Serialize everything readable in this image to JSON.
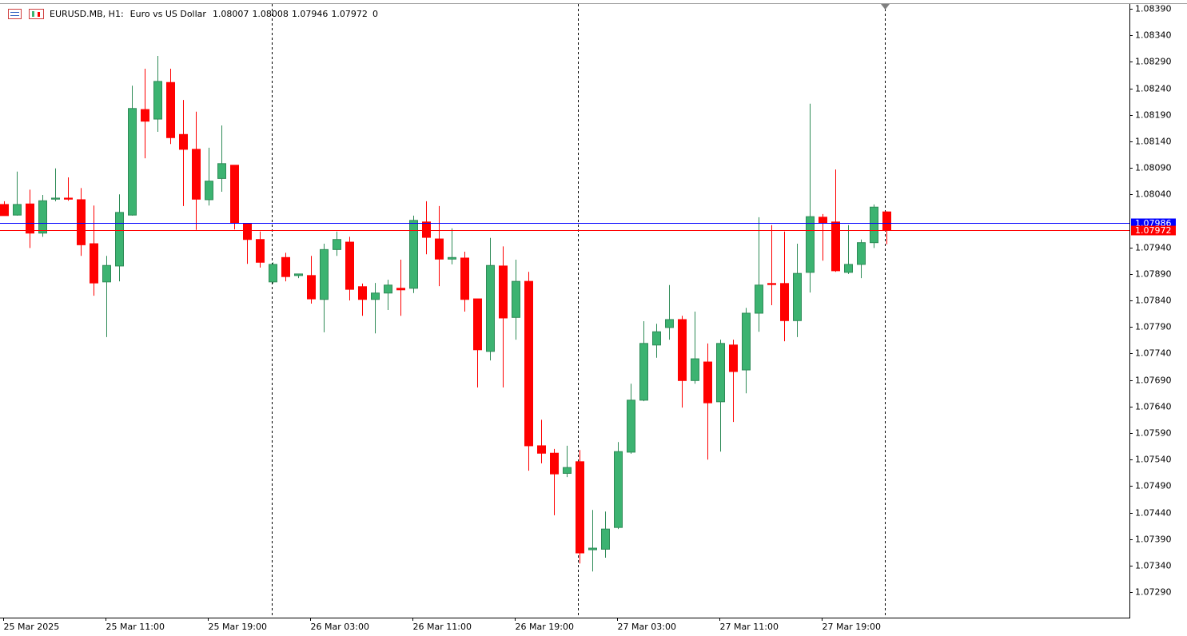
{
  "chart_data": {
    "type": "candlestick",
    "symbol": "EURUSD.MB, H1:",
    "description": "Euro vs US Dollar",
    "header_value": 0,
    "categories": [
      "25 Mar 2025",
      null,
      null,
      null,
      null,
      null,
      null,
      null,
      "25 Mar 11:00",
      null,
      null,
      null,
      null,
      null,
      null,
      null,
      "25 Mar 19:00",
      null,
      null,
      null,
      null,
      null,
      null,
      null,
      "26 Mar 03:00",
      null,
      null,
      null,
      null,
      null,
      null,
      null,
      "26 Mar 11:00",
      null,
      null,
      null,
      null,
      null,
      null,
      null,
      "26 Mar 19:00",
      null,
      null,
      null,
      null,
      null,
      null,
      null,
      "27 Mar 03:00",
      null,
      null,
      null,
      null,
      null,
      null,
      null,
      "27 Mar 11:00",
      null,
      null,
      null,
      null,
      null,
      null,
      null,
      "27 Mar 19:00",
      null,
      null,
      null,
      null,
      null
    ],
    "open": [
      1.08021,
      1.08001,
      1.08022,
      1.07967,
      1.08031,
      1.08033,
      1.0803,
      1.07947,
      1.07875,
      1.07905,
      1.08001,
      1.082,
      1.08182,
      1.08251,
      1.08153,
      1.08125,
      1.0803,
      1.0807,
      1.08095,
      1.07985,
      1.07955,
      1.07875,
      1.07921,
      1.07887,
      1.07887,
      1.07842,
      1.07936,
      1.0795,
      1.07866,
      1.07842,
      1.07854,
      1.07863,
      1.07863,
      1.07988,
      1.07956,
      1.07918,
      1.0792,
      1.07843,
      1.07744,
      1.07905,
      1.07808,
      1.07876,
      1.07566,
      1.07552,
      1.07514,
      1.07536,
      1.0737,
      1.07371,
      1.07412,
      1.07554,
      1.07652,
      1.07756,
      1.07789,
      1.07804,
      1.07689,
      1.07724,
      1.07649,
      1.07756,
      1.07709,
      1.07816,
      1.07872,
      1.07872,
      1.07802,
      1.07893,
      1.07997,
      1.07988,
      1.07893,
      1.07908,
      1.07949,
      1.08007
    ],
    "high": [
      1.08027,
      1.08083,
      1.08049,
      1.08039,
      1.08089,
      1.08072,
      1.08052,
      1.08019,
      1.07924,
      1.0804,
      1.08245,
      1.08277,
      1.08301,
      1.08277,
      1.08218,
      1.08196,
      1.08128,
      1.0817,
      1.08095,
      1.07985,
      1.0797,
      1.07912,
      1.0793,
      1.0789,
      1.07924,
      1.07947,
      1.0797,
      1.0796,
      1.07872,
      1.07873,
      1.07879,
      1.07917,
      1.08,
      1.08027,
      1.08018,
      1.07976,
      1.07932,
      1.07843,
      1.07958,
      1.07942,
      1.07917,
      1.07894,
      1.07615,
      1.0756,
      1.07566,
      1.07558,
      1.07445,
      1.07442,
      1.07573,
      1.07683,
      1.07801,
      1.07796,
      1.07869,
      1.07811,
      1.07819,
      1.07759,
      1.07766,
      1.07766,
      1.07826,
      1.07997,
      1.07982,
      1.0797,
      1.07947,
      1.08211,
      1.08003,
      1.08087,
      1.07982,
      1.07955,
      1.08021,
      1.08008
    ],
    "low": [
      1.08,
      1.08,
      1.07939,
      1.0796,
      1.08027,
      1.08028,
      1.07924,
      1.07849,
      1.07771,
      1.07876,
      1.08,
      1.08108,
      1.08158,
      1.08135,
      1.08018,
      1.07973,
      1.08019,
      1.08045,
      1.07974,
      1.07909,
      1.07902,
      1.07872,
      1.07876,
      1.07882,
      1.07834,
      1.0778,
      1.07924,
      1.0784,
      1.07811,
      1.07778,
      1.07822,
      1.07811,
      1.07854,
      1.07927,
      1.07867,
      1.07908,
      1.07819,
      1.07676,
      1.07727,
      1.07676,
      1.07766,
      1.07519,
      1.07533,
      1.07435,
      1.07507,
      1.07344,
      1.07329,
      1.07355,
      1.07409,
      1.07551,
      1.0765,
      1.07732,
      1.07766,
      1.07638,
      1.07683,
      1.0754,
      1.07555,
      1.07611,
      1.07665,
      1.07781,
      1.07831,
      1.07763,
      1.07771,
      1.07855,
      1.07915,
      1.07894,
      1.0789,
      1.07882,
      1.07939,
      1.07946
    ],
    "close": [
      1.08,
      1.08021,
      1.07967,
      1.08028,
      1.08033,
      1.08031,
      1.07945,
      1.07873,
      1.07906,
      1.08006,
      1.08202,
      1.08178,
      1.08253,
      1.08147,
      1.08125,
      1.08031,
      1.08065,
      1.08098,
      1.07986,
      1.07955,
      1.07912,
      1.07908,
      1.07885,
      1.0789,
      1.07843,
      1.07936,
      1.07955,
      1.07861,
      1.07842,
      1.07854,
      1.07869,
      1.0786,
      1.07991,
      1.07959,
      1.07918,
      1.07921,
      1.07842,
      1.07747,
      1.07906,
      1.07807,
      1.07876,
      1.07566,
      1.07552,
      1.07513,
      1.07525,
      1.07364,
      1.07373,
      1.07409,
      1.07555,
      1.07652,
      1.07759,
      1.07781,
      1.07804,
      1.07689,
      1.0773,
      1.07647,
      1.07759,
      1.07706,
      1.07816,
      1.07869,
      1.0787,
      1.07802,
      1.07891,
      1.07998,
      1.07986,
      1.07896,
      1.07908,
      1.07949,
      1.08016,
      1.07972
    ],
    "up_color": "#3cb371",
    "down_color": "#ff0000",
    "ask": 1.07986,
    "ask_color": "#0000ff",
    "bid": 1.07972,
    "bid_color": "#ff0000",
    "ylim": [
      1.07242,
      1.08399
    ],
    "yticks": [
      {
        "value": 1.0839,
        "label": "1.08390"
      },
      {
        "value": 1.0834,
        "label": "1.08340"
      },
      {
        "value": 1.0829,
        "label": "1.08290"
      },
      {
        "value": 1.0824,
        "label": "1.08240"
      },
      {
        "value": 1.0819,
        "label": "1.08190"
      },
      {
        "value": 1.0814,
        "label": "1.08140"
      },
      {
        "value": 1.0809,
        "label": "1.08090"
      },
      {
        "value": 1.0804,
        "label": "1.08040"
      },
      {
        "value": 1.0794,
        "label": "1.07940"
      },
      {
        "value": 1.0789,
        "label": "1.07890"
      },
      {
        "value": 1.0784,
        "label": "1.07840"
      },
      {
        "value": 1.0779,
        "label": "1.07790"
      },
      {
        "value": 1.0774,
        "label": "1.07740"
      },
      {
        "value": 1.0769,
        "label": "1.07690"
      },
      {
        "value": 1.0764,
        "label": "1.07640"
      },
      {
        "value": 1.0759,
        "label": "1.07590"
      },
      {
        "value": 1.0754,
        "label": "1.07540"
      },
      {
        "value": 1.0749,
        "label": "1.07490"
      },
      {
        "value": 1.0744,
        "label": "1.07440"
      },
      {
        "value": 1.0739,
        "label": "1.07390"
      },
      {
        "value": 1.0734,
        "label": "1.07340"
      },
      {
        "value": 1.0729,
        "label": "1.07290"
      }
    ],
    "grid": false
  }
}
